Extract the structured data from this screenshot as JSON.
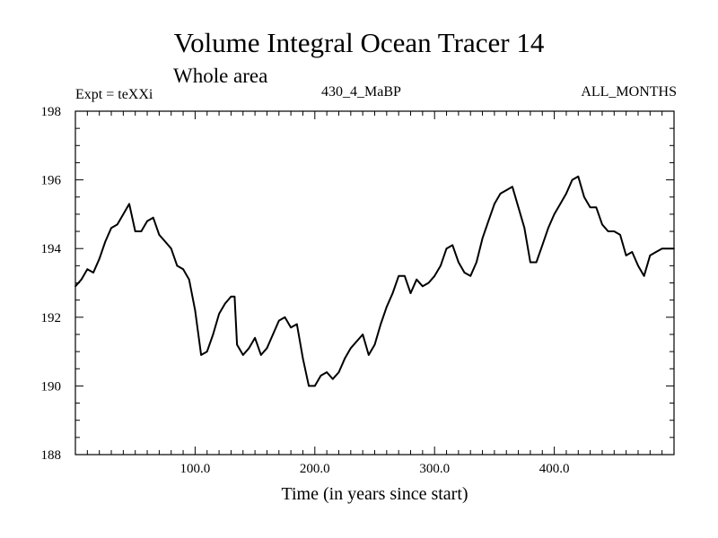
{
  "header": {
    "title": "Volume Integral Ocean Tracer 14",
    "subtitle": "Whole area",
    "expt": "Expt = teXXi",
    "run": "430_4_MaBP",
    "months": "ALL_MONTHS"
  },
  "chart_data": {
    "type": "line",
    "title": "Volume Integral Ocean Tracer 14",
    "subtitle": "Whole area",
    "xlabel": "Time (in years since start)",
    "ylabel": "",
    "xlim": [
      0,
      500
    ],
    "ylim": [
      188,
      198
    ],
    "xticks": [
      100,
      200,
      300,
      400
    ],
    "xtick_labels": [
      "100.0",
      "200.0",
      "300.0",
      "400.0"
    ],
    "yticks": [
      188,
      190,
      192,
      194,
      196,
      198
    ],
    "ytick_labels": [
      "188",
      "190",
      "192",
      "194",
      "196",
      "198"
    ],
    "grid": false,
    "series": [
      {
        "color": "#000000",
        "x": [
          0,
          5,
          10,
          15,
          20,
          25,
          30,
          35,
          40,
          45,
          50,
          55,
          60,
          65,
          70,
          75,
          80,
          85,
          90,
          95,
          100,
          105,
          110,
          115,
          120,
          125,
          130,
          133,
          135,
          140,
          145,
          150,
          155,
          160,
          165,
          170,
          175,
          180,
          185,
          190,
          195,
          200,
          205,
          210,
          215,
          220,
          225,
          230,
          235,
          240,
          245,
          250,
          255,
          260,
          265,
          270,
          275,
          280,
          285,
          290,
          295,
          300,
          305,
          310,
          315,
          320,
          325,
          330,
          335,
          340,
          345,
          350,
          355,
          360,
          365,
          370,
          375,
          380,
          385,
          390,
          395,
          400,
          405,
          410,
          415,
          420,
          425,
          430,
          435,
          440,
          445,
          450,
          455,
          460,
          465,
          470,
          475,
          480,
          485,
          490,
          495,
          500
        ],
        "y": [
          192.9,
          193.1,
          193.4,
          193.3,
          193.7,
          194.2,
          194.6,
          194.7,
          195.0,
          195.3,
          194.5,
          194.5,
          194.8,
          194.9,
          194.4,
          194.2,
          194.0,
          193.5,
          193.4,
          193.1,
          192.2,
          190.9,
          191.0,
          191.5,
          192.1,
          192.4,
          192.6,
          192.6,
          191.2,
          190.9,
          191.1,
          191.4,
          190.9,
          191.1,
          191.5,
          191.9,
          192.0,
          191.7,
          191.8,
          190.8,
          190.0,
          190.0,
          190.3,
          190.4,
          190.2,
          190.4,
          190.8,
          191.1,
          191.3,
          191.5,
          190.9,
          191.2,
          191.8,
          192.3,
          192.7,
          193.2,
          193.2,
          192.7,
          193.1,
          192.9,
          193.0,
          193.2,
          193.5,
          194.0,
          194.1,
          193.6,
          193.3,
          193.2,
          193.6,
          194.3,
          194.8,
          195.3,
          195.6,
          195.7,
          195.8,
          195.2,
          194.6,
          193.6,
          193.6,
          194.1,
          194.6,
          195.0,
          195.3,
          195.6,
          196.0,
          196.1,
          195.5,
          195.2,
          195.2,
          194.7,
          194.5,
          194.5,
          194.4,
          193.8,
          193.9,
          193.5,
          193.2,
          193.8,
          193.9,
          194.0,
          194.0,
          194.0
        ]
      }
    ]
  }
}
